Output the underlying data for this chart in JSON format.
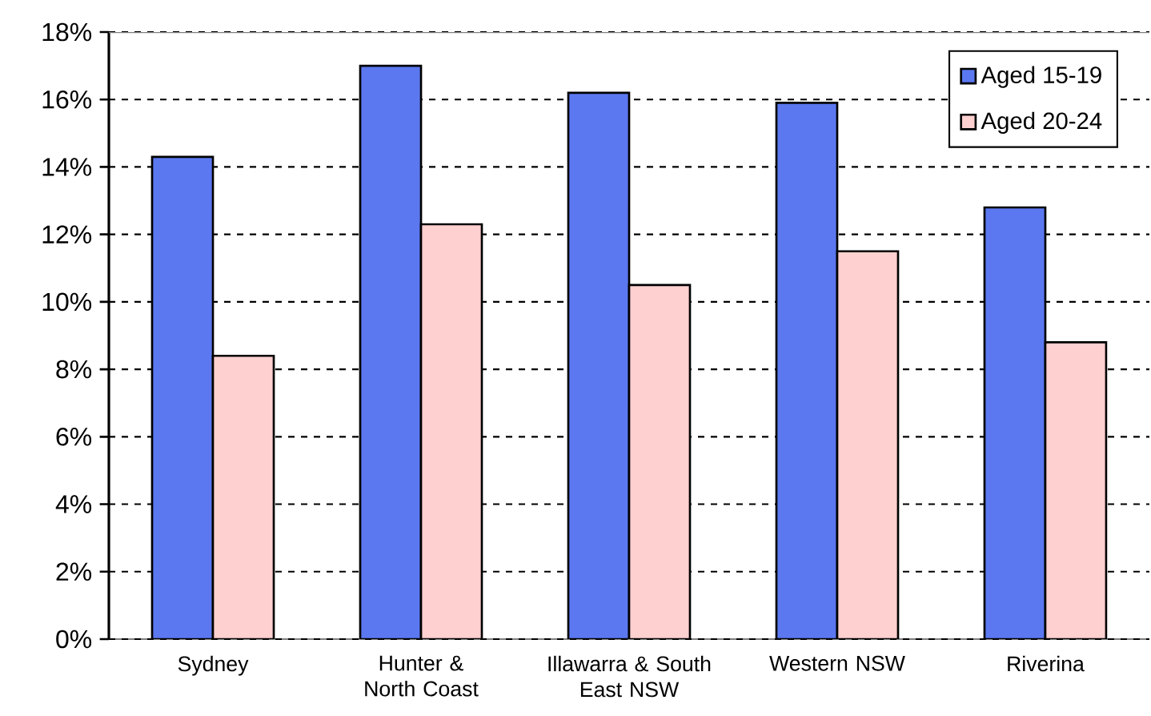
{
  "chart_data": {
    "type": "bar",
    "categories": [
      "Sydney",
      "Hunter & North Coast",
      "Illawarra & South East NSW",
      "Western NSW",
      "Riverina"
    ],
    "series": [
      {
        "name": "Aged 15-19",
        "color": "#5b78f0",
        "values": [
          14.3,
          17.0,
          16.2,
          15.9,
          12.8
        ]
      },
      {
        "name": "Aged 20-24",
        "color": "#ffd0d0",
        "values": [
          8.4,
          12.3,
          10.5,
          11.5,
          8.8
        ]
      }
    ],
    "ylim": [
      0,
      18
    ],
    "yticks": [
      {
        "value": 0,
        "label": "0%"
      },
      {
        "value": 2,
        "label": "2%"
      },
      {
        "value": 4,
        "label": "4%"
      },
      {
        "value": 6,
        "label": "6%"
      },
      {
        "value": 8,
        "label": "8%"
      },
      {
        "value": 10,
        "label": "10%"
      },
      {
        "value": 12,
        "label": "12%"
      },
      {
        "value": 14,
        "label": "14%"
      },
      {
        "value": 16,
        "label": "16%"
      },
      {
        "value": 18,
        "label": "18%"
      }
    ],
    "grid": "y",
    "legend": "top right"
  }
}
